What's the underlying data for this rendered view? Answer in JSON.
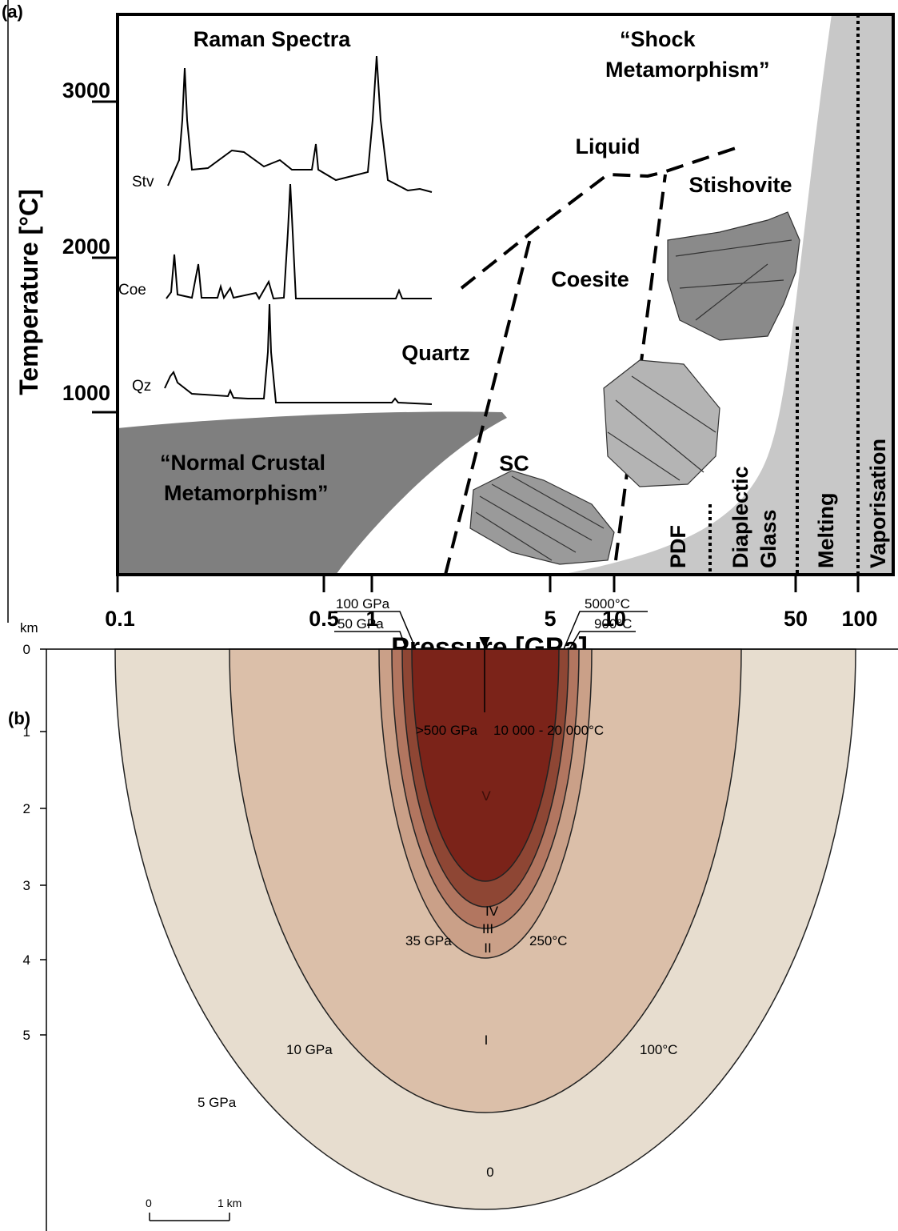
{
  "panel_a": {
    "label": "(a)",
    "raman_title": "Raman Spectra",
    "spectra_labels": [
      "Stv",
      "Coe",
      "Qz"
    ],
    "shock_label": [
      "“Shock",
      "Metamorphism”"
    ],
    "normal_label": [
      "“Normal Crustal",
      "Metamorphism”"
    ],
    "phases": {
      "liquid": "Liquid",
      "stishovite": "Stishovite",
      "coesite": "Coesite",
      "quartz": "Quartz",
      "sc": "SC"
    },
    "stages": {
      "pdf": "PDF",
      "diaplectic": [
        "Diaplectic",
        "Glass"
      ],
      "melting": "Melting",
      "vaporisation": "Vaporisation"
    },
    "y_axis_label": "Temperature [°C]",
    "y_ticks": [
      "3000",
      "2000",
      "1000"
    ],
    "x_axis_label": "Pressure [GPa]",
    "x_ticks": [
      "0.1",
      "0.5",
      "1",
      "5",
      "10",
      "50",
      "100"
    ]
  },
  "panel_b": {
    "label": "(b)",
    "depth_unit": "km",
    "depth_ticks": [
      "0",
      "1",
      "2",
      "3",
      "4",
      "5"
    ],
    "top_pressure": ">500 GPa",
    "top_temperature": "10 000 - 20 000°C",
    "isobars": [
      "100 GPa",
      "50 GPa",
      "35 GPa",
      "10 GPa",
      "5 GPa"
    ],
    "isotherms": [
      "5000°C",
      "900°C",
      "250°C",
      "100°C"
    ],
    "zones": [
      "V",
      "IV",
      "III",
      "II",
      "I",
      "0"
    ],
    "scale": [
      "0",
      "1 km"
    ]
  }
}
